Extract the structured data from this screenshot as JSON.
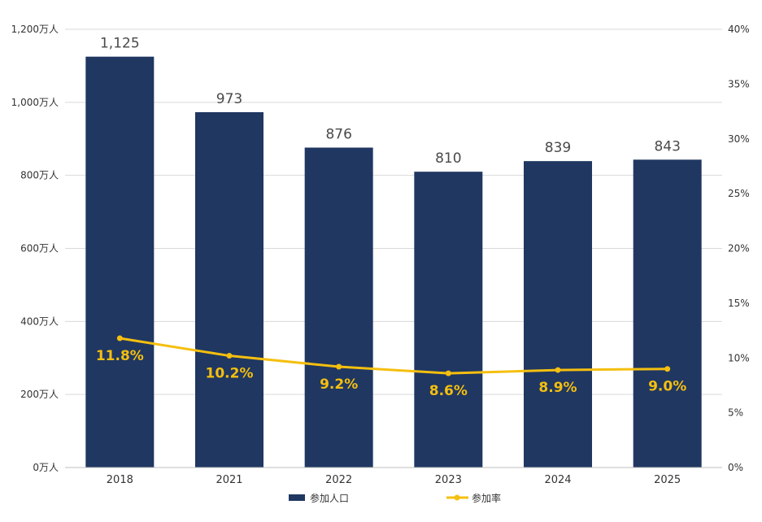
{
  "chart_data": {
    "type": "bar",
    "categories": [
      "2018",
      "2021",
      "2022",
      "2023",
      "2024",
      "2025"
    ],
    "series": [
      {
        "name": "参加人口",
        "type": "bar",
        "axis": "left",
        "values": [
          1125,
          973,
          876,
          810,
          839,
          843
        ],
        "labels": [
          "1,125",
          "973",
          "876",
          "810",
          "839",
          "843"
        ],
        "color": "#1f3761"
      },
      {
        "name": "参加率",
        "type": "line",
        "axis": "right",
        "values": [
          11.8,
          10.2,
          9.2,
          8.6,
          8.9,
          9.0
        ],
        "labels": [
          "11.8%",
          "10.2%",
          "9.2%",
          "8.6%",
          "8.9%",
          "9.0%"
        ],
        "color": "#f5bf0f"
      }
    ],
    "y_left": {
      "range": [
        0,
        1200
      ],
      "ticks": [
        0,
        200,
        400,
        600,
        800,
        1000,
        1200
      ],
      "tick_labels": [
        "0万人",
        "200万人",
        "400万人",
        "600万人",
        "800万人",
        "1,000万人",
        "1,200万人"
      ]
    },
    "y_right": {
      "range": [
        0,
        40
      ],
      "ticks": [
        0,
        5,
        10,
        15,
        20,
        25,
        30,
        35,
        40
      ],
      "tick_labels": [
        "0%",
        "5%",
        "10%",
        "15%",
        "20%",
        "25%",
        "30%",
        "35%",
        "40%"
      ]
    },
    "grid": true,
    "legend": "bottom-center",
    "title": "",
    "xlabel": "",
    "ylabel": ""
  }
}
